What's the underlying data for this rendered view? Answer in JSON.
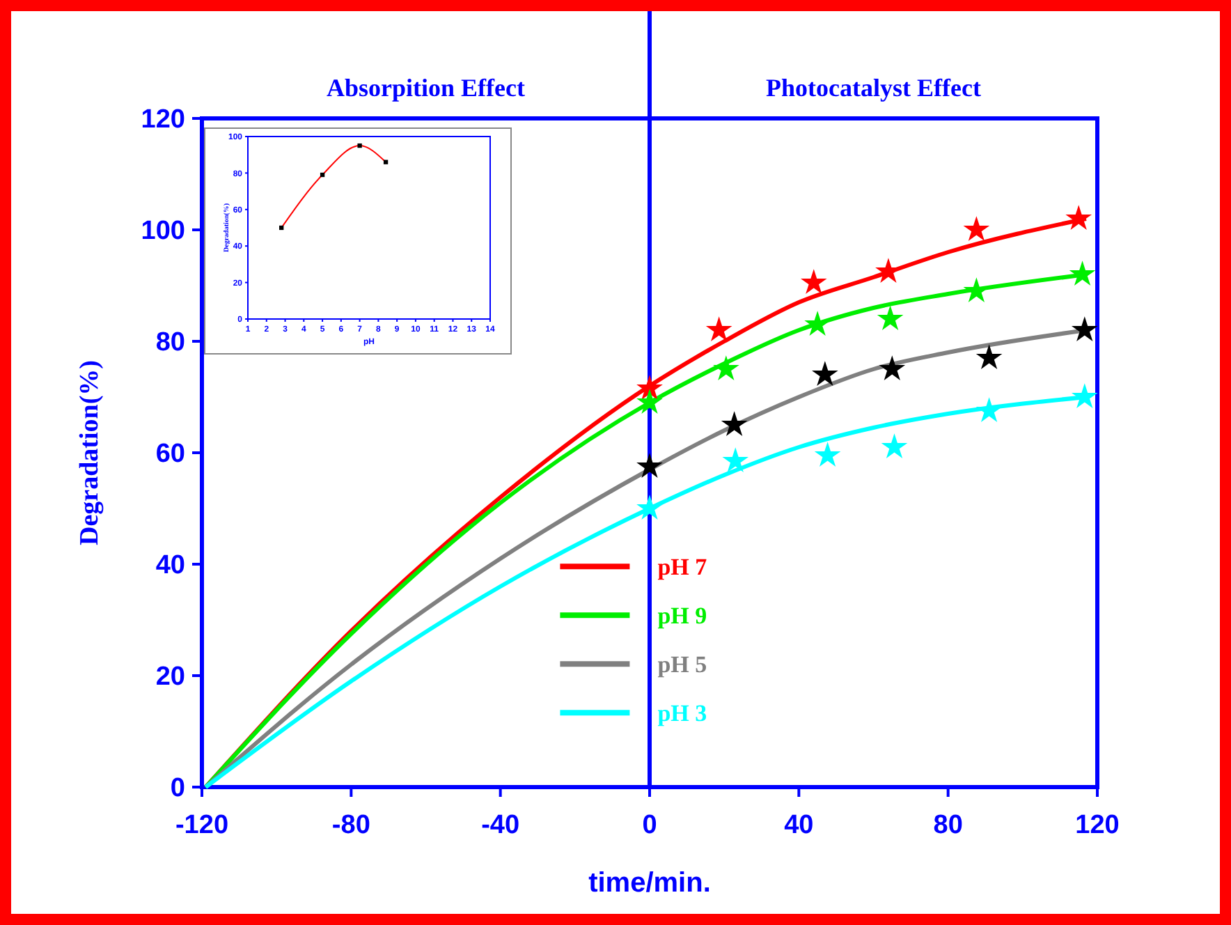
{
  "chart_data": [
    {
      "type": "line",
      "xlabel": "time/min.",
      "ylabel": "Degradation(%)",
      "xlim": [
        -120,
        120
      ],
      "xticks": [
        -120,
        -80,
        -40,
        0,
        40,
        80,
        120
      ],
      "ylim": [
        0,
        120
      ],
      "yticks": [
        0,
        20,
        40,
        60,
        80,
        100,
        120
      ],
      "grid": false,
      "legend": "bottom right",
      "annotations": [
        "Absorpition Effect",
        "Photocatalyst Effect"
      ],
      "ref_lines": [
        {
          "axis": "x",
          "value": 0,
          "color": "#0000ff"
        }
      ],
      "series": [
        {
          "name": "pH 7",
          "color": "#ff0000",
          "x": [
            -119,
            -80,
            -40,
            0,
            20,
            40,
            60,
            80,
            117
          ],
          "values": [
            0,
            28,
            52,
            72,
            80,
            87,
            91.5,
            96,
            102
          ]
        },
        {
          "name": "pH 9",
          "color": "#00ee00",
          "x": [
            -119,
            -80,
            -40,
            0,
            20,
            40,
            60,
            80,
            117
          ],
          "values": [
            0,
            27.5,
            51,
            69,
            76,
            82,
            86,
            88.5,
            92
          ]
        },
        {
          "name": "pH 5",
          "color": "#808080",
          "x": [
            -119,
            -80,
            -40,
            0,
            20,
            40,
            60,
            80,
            117
          ],
          "values": [
            0,
            22,
            41,
            57,
            64,
            70,
            75,
            78,
            82
          ]
        },
        {
          "name": "pH 3",
          "color": "#00ffff",
          "x": [
            -119,
            -80,
            -40,
            0,
            20,
            40,
            60,
            80,
            117
          ],
          "values": [
            0,
            19,
            36,
            50,
            56,
            61,
            64.5,
            67,
            70
          ]
        },
        {
          "type": "scatter",
          "marker": "star",
          "color": "#ff0000",
          "x": [
            0,
            18.6,
            44,
            64,
            87.6,
            115
          ],
          "values": [
            71.5,
            82,
            90.5,
            92.5,
            100,
            102
          ]
        },
        {
          "type": "scatter",
          "marker": "star",
          "color": "#00ee00",
          "x": [
            0,
            20.5,
            45,
            64.5,
            87.6,
            116
          ],
          "values": [
            69,
            75,
            83,
            84,
            89,
            92
          ]
        },
        {
          "type": "scatter",
          "marker": "star",
          "color": "#000000",
          "x": [
            0,
            22.7,
            47,
            65,
            91,
            116.6
          ],
          "values": [
            57.5,
            65,
            74,
            75,
            77,
            82
          ]
        },
        {
          "type": "scatter",
          "marker": "star",
          "color": "#00ffff",
          "x": [
            0,
            23,
            47.7,
            65.6,
            91,
            116.6
          ],
          "values": [
            50,
            58.5,
            59.5,
            61,
            67.5,
            70
          ]
        }
      ]
    },
    {
      "type": "line",
      "xlabel": "pH",
      "ylabel": "Degradation(%)",
      "xlim": [
        1,
        14
      ],
      "xticks": [
        1,
        2,
        3,
        4,
        5,
        6,
        7,
        8,
        9,
        10,
        11,
        12,
        13,
        14
      ],
      "ylim": [
        0,
        100
      ],
      "yticks": [
        0,
        20,
        40,
        60,
        80,
        100
      ],
      "grid": false,
      "legend": false,
      "series": [
        {
          "color": "#ff0000",
          "x": [
            2.8,
            5,
            7,
            8.4
          ],
          "values": [
            50,
            79,
            95,
            86
          ]
        },
        {
          "type": "scatter",
          "marker": "square",
          "color": "#000000",
          "x": [
            2.8,
            5,
            7,
            8.4
          ],
          "values": [
            50,
            79,
            95,
            86
          ]
        }
      ]
    }
  ]
}
